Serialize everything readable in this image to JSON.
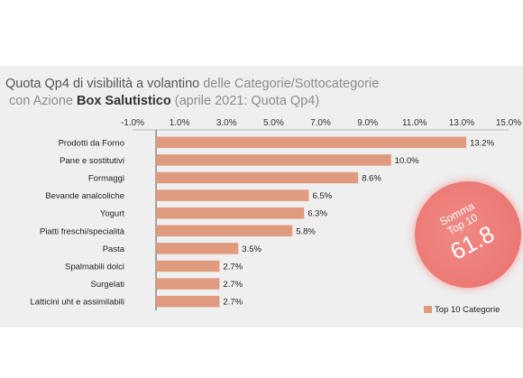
{
  "title": {
    "line1_a": "Quota Qp4 di visibilità a volantino",
    "line1_b": " delle Categorie/Sottocategorie",
    "line2_a": " con Azione ",
    "line2_b": "Box Salutistico",
    "line2_c": " (aprile 2021: Quota Qp4)"
  },
  "bubble": {
    "line1": "Somma",
    "line2": "Top 10",
    "value": "61.8"
  },
  "colors": {
    "bar": "#e09a7e",
    "bubble": "#ec7874",
    "card": "#efefef"
  },
  "chart_data": {
    "type": "bar",
    "orientation": "horizontal",
    "categories": [
      "Prodotti da Forno",
      "Pane e sostitutivi",
      "Formaggi",
      "Bevande analcoliche",
      "Yogurt",
      "Piatti freschi/specialità",
      "Pasta",
      "Spalmabili dolci",
      "Surgelati",
      "Latticini uht e assimilabili"
    ],
    "series": [
      {
        "name": "Top 10 Categorie",
        "values": [
          13.2,
          10.0,
          8.6,
          6.5,
          6.3,
          5.8,
          3.5,
          2.7,
          2.7,
          2.7
        ]
      }
    ],
    "value_labels": [
      "13.2%",
      "10.0%",
      "8.6%",
      "6.5%",
      "6.3%",
      "5.8%",
      "3.5%",
      "2.7%",
      "2.7%",
      "2.7%"
    ],
    "xlim": [
      -1.0,
      15.0
    ],
    "x_ticks": [
      -1.0,
      1.0,
      3.0,
      5.0,
      7.0,
      9.0,
      11.0,
      13.0,
      15.0
    ],
    "x_tick_labels": [
      "-1.0%",
      "1.0%",
      "3.0%",
      "5.0%",
      "7.0%",
      "9.0%",
      "11.0%",
      "13.0%",
      "15.0%"
    ],
    "x_axis_position": "top",
    "grid": false,
    "legend": "bottom-right"
  }
}
